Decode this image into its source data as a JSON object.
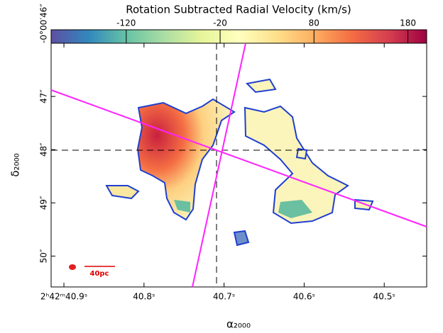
{
  "chart_data": {
    "type": "map",
    "colorbar": {
      "label": "Rotation Subtracted Radial Velocity (km/s)",
      "lim": [
        -200,
        200
      ],
      "ticks": [
        -120,
        -20,
        80,
        180
      ],
      "colors": [
        "#5e4fa2",
        "#3288bd",
        "#66c2a5",
        "#abdda4",
        "#e6f598",
        "#ffffbf",
        "#fee08b",
        "#fdae61",
        "#f46d43",
        "#d53e4f",
        "#9e0142"
      ]
    },
    "xlabel": "α₂₀₀₀",
    "ylabel": "δ₂₀₀₀",
    "xlim": [
      40.916,
      40.447
    ],
    "xticks": [
      {
        "value": 40.9,
        "label": "2ʰ42ᵐ40.9ˢ"
      },
      {
        "value": 40.8,
        "label": "40.8ˢ"
      },
      {
        "value": 40.7,
        "label": "40.7ˢ"
      },
      {
        "value": 40.6,
        "label": "40.6ˢ"
      },
      {
        "value": 40.5,
        "label": "40.5ˢ"
      }
    ],
    "ylim": [
      46,
      50.58
    ],
    "yticks": [
      {
        "value": 46,
        "label": "-0°00′46″"
      },
      {
        "value": 47,
        "label": "47″"
      },
      {
        "value": 48,
        "label": "48″"
      },
      {
        "value": 49,
        "label": "49″"
      },
      {
        "value": 50,
        "label": "50″"
      }
    ],
    "scale_bar": "40pc"
  }
}
